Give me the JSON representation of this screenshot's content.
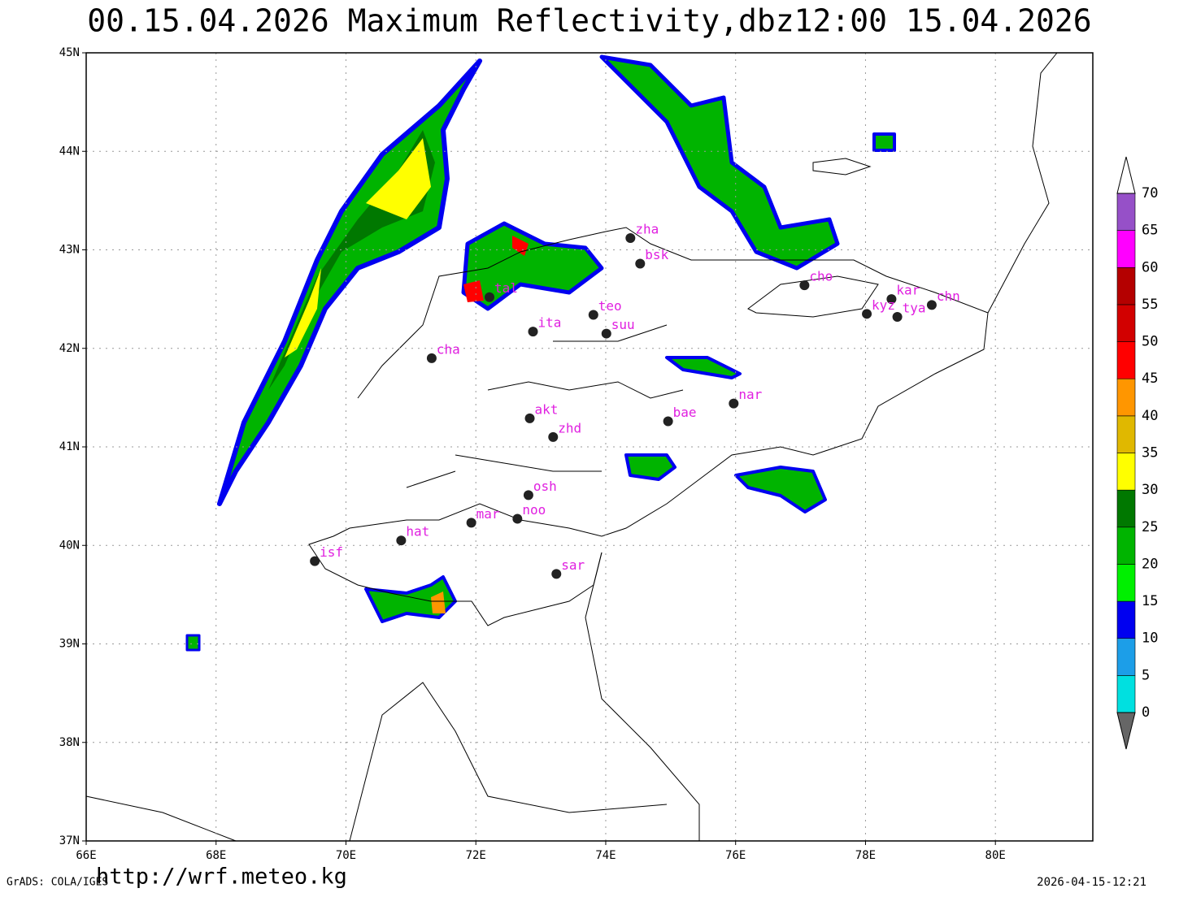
{
  "map": {
    "title": "00.15.04.2026  Maximum  Reflectivity,dbz12:00  15.04.2026",
    "xlim": [
      66,
      81.5
    ],
    "ylim": [
      37,
      45
    ],
    "xticks": [
      {
        "value": 66,
        "label": "66E"
      },
      {
        "value": 68,
        "label": "68E"
      },
      {
        "value": 70,
        "label": "70E"
      },
      {
        "value": 72,
        "label": "72E"
      },
      {
        "value": 74,
        "label": "74E"
      },
      {
        "value": 76,
        "label": "76E"
      },
      {
        "value": 78,
        "label": "78E"
      },
      {
        "value": 80,
        "label": "80E"
      }
    ],
    "yticks": [
      {
        "value": 37,
        "label": "37N"
      },
      {
        "value": 38,
        "label": "38N"
      },
      {
        "value": 39,
        "label": "39N"
      },
      {
        "value": 40,
        "label": "40N"
      },
      {
        "value": 41,
        "label": "41N"
      },
      {
        "value": 42,
        "label": "42N"
      },
      {
        "value": 43,
        "label": "43N"
      },
      {
        "value": 44,
        "label": "44N"
      },
      {
        "value": 45,
        "label": "45N"
      }
    ],
    "grid": true,
    "stations": [
      {
        "label": "zha",
        "lon": 74.38,
        "lat": 43.12
      },
      {
        "label": "bsk",
        "lon": 74.53,
        "lat": 42.86
      },
      {
        "label": "tal",
        "lon": 72.21,
        "lat": 42.52
      },
      {
        "label": "cha",
        "lon": 71.32,
        "lat": 41.9
      },
      {
        "label": "ita",
        "lon": 72.88,
        "lat": 42.17
      },
      {
        "label": "teo",
        "lon": 73.81,
        "lat": 42.34
      },
      {
        "label": "suu",
        "lon": 74.01,
        "lat": 42.15
      },
      {
        "label": "cho",
        "lon": 77.06,
        "lat": 42.64
      },
      {
        "label": "kar",
        "lon": 78.4,
        "lat": 42.5
      },
      {
        "label": "kyz",
        "lon": 78.02,
        "lat": 42.35
      },
      {
        "label": "tya",
        "lon": 78.49,
        "lat": 42.32
      },
      {
        "label": "chn",
        "lon": 79.02,
        "lat": 42.44
      },
      {
        "label": "nar",
        "lon": 75.97,
        "lat": 41.44
      },
      {
        "label": "bae",
        "lon": 74.96,
        "lat": 41.26
      },
      {
        "label": "akt",
        "lon": 72.83,
        "lat": 41.29
      },
      {
        "label": "zhd",
        "lon": 73.19,
        "lat": 41.1
      },
      {
        "label": "osh",
        "lon": 72.81,
        "lat": 40.51
      },
      {
        "label": "mar",
        "lon": 71.93,
        "lat": 40.23
      },
      {
        "label": "noo",
        "lon": 72.64,
        "lat": 40.27
      },
      {
        "label": "hat",
        "lon": 70.85,
        "lat": 40.05
      },
      {
        "label": "isf",
        "lon": 69.52,
        "lat": 39.84
      },
      {
        "label": "sar",
        "lon": 73.24,
        "lat": 39.71
      }
    ],
    "colorbar": {
      "levels": [
        0,
        5,
        10,
        15,
        20,
        25,
        30,
        35,
        40,
        45,
        50,
        55,
        60,
        65,
        70
      ],
      "colors": [
        "#00e0e0",
        "#1c9ee8",
        "#0000f0",
        "#00f000",
        "#00b400",
        "#007800",
        "#ffff00",
        "#e0b800",
        "#ff9600",
        "#ff0000",
        "#d20000",
        "#b40000",
        "#ff00ff",
        "#9650c8"
      ]
    },
    "footer_left": "GrADS: COLA/IGES",
    "url": "http://wrf.meteo.kg",
    "timestamp": "2026-04-15-12:21"
  }
}
